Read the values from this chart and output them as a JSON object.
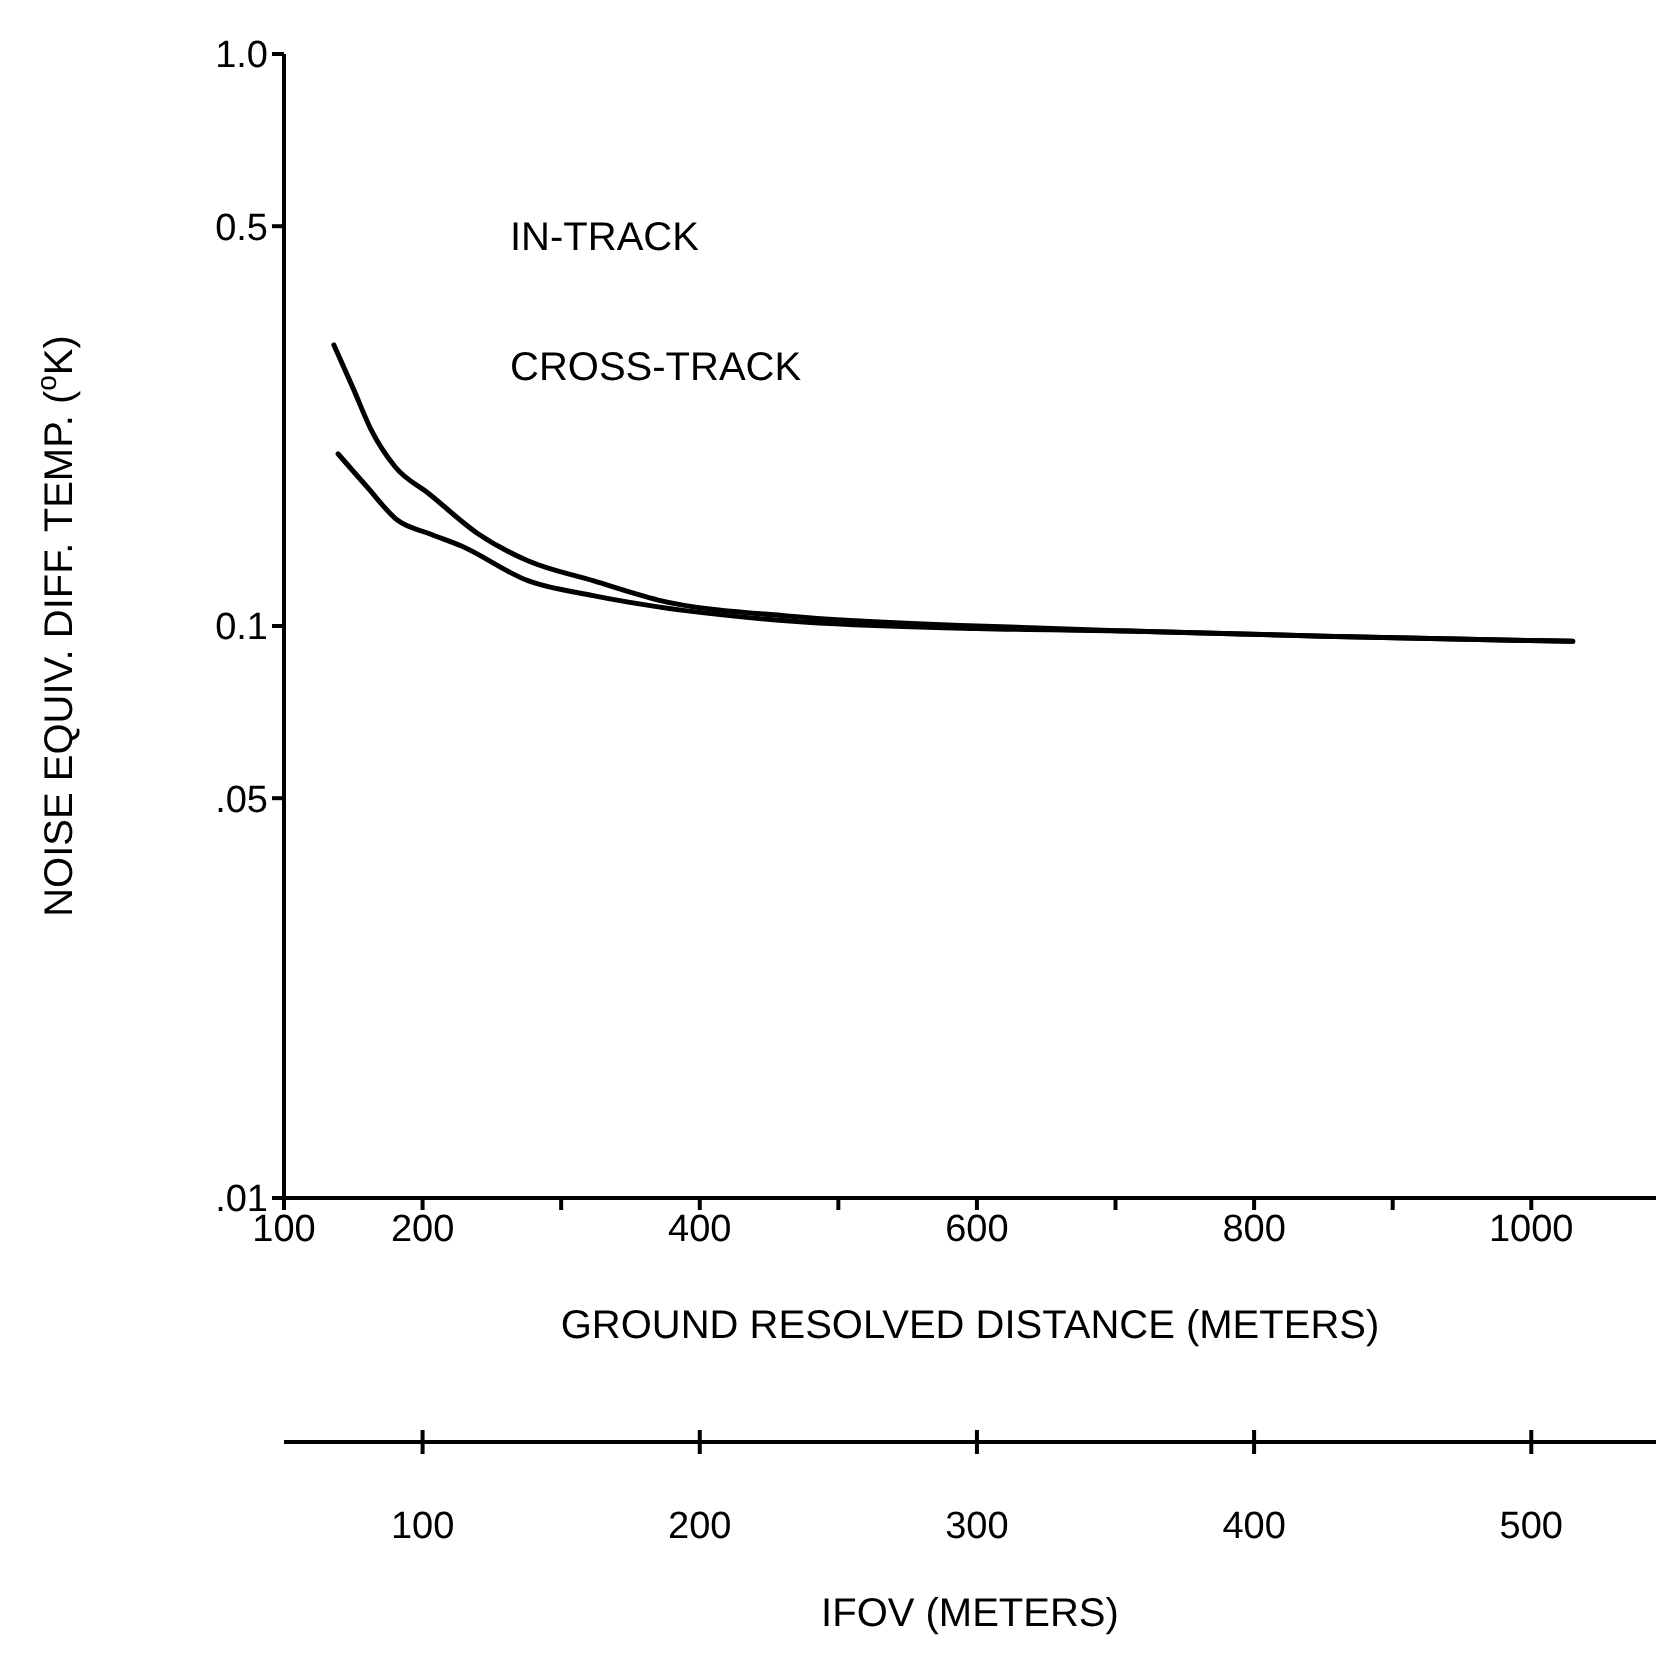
{
  "chart_data": {
    "type": "line",
    "xlabel": "GROUND RESOLVED DISTANCE (METERS)",
    "ylabel": "NOISE EQUIV. DIFF. TEMP. ($^{o}$K)",
    "x2label": "IFOV (METERS)",
    "annotations": [
      "IN-TRACK",
      "CROSS-TRACK"
    ],
    "log": "y",
    "xlim": [
      100,
      1090
    ],
    "xticks": [
      100,
      200,
      {
        "value": 300,
        "label": null
      },
      400,
      {
        "value": 500,
        "label": null
      },
      600,
      {
        "value": 700,
        "label": null
      },
      800,
      {
        "value": 900,
        "label": null
      },
      1000
    ],
    "x2lim": [
      50,
      545
    ],
    "x2ticks": [
      100,
      200,
      300,
      400,
      500
    ],
    "ylim": [
      0.01,
      1.0
    ],
    "yticks": [
      {
        "value": 0.01,
        "label": ".01"
      },
      {
        "value": 0.05,
        "label": ".05"
      },
      {
        "value": 0.1,
        "label": "0.1"
      },
      {
        "value": 0.5,
        "label": "0.5"
      },
      {
        "value": 1.0,
        "label": "1.0"
      }
    ],
    "series": [
      {
        "color": "#000000",
        "x": [
          136,
          150,
          163,
          180,
          205,
          240,
          276,
          323,
          370,
          465,
          600,
          709,
          850,
          1030
        ],
        "values": [
          0.31,
          0.26,
          0.22,
          0.19,
          0.17,
          0.145,
          0.13,
          0.12,
          0.111,
          0.104,
          0.1,
          0.098,
          0.096,
          0.094
        ]
      },
      {
        "color": "#000000",
        "x": [
          139,
          160,
          182,
          205,
          228,
          276,
          323,
          370,
          465,
          600,
          709,
          850,
          1030
        ],
        "values": [
          0.2,
          0.175,
          0.153,
          0.145,
          0.138,
          0.12,
          0.113,
          0.108,
          0.102,
          0.099,
          0.098,
          0.096,
          0.094
        ]
      }
    ]
  }
}
